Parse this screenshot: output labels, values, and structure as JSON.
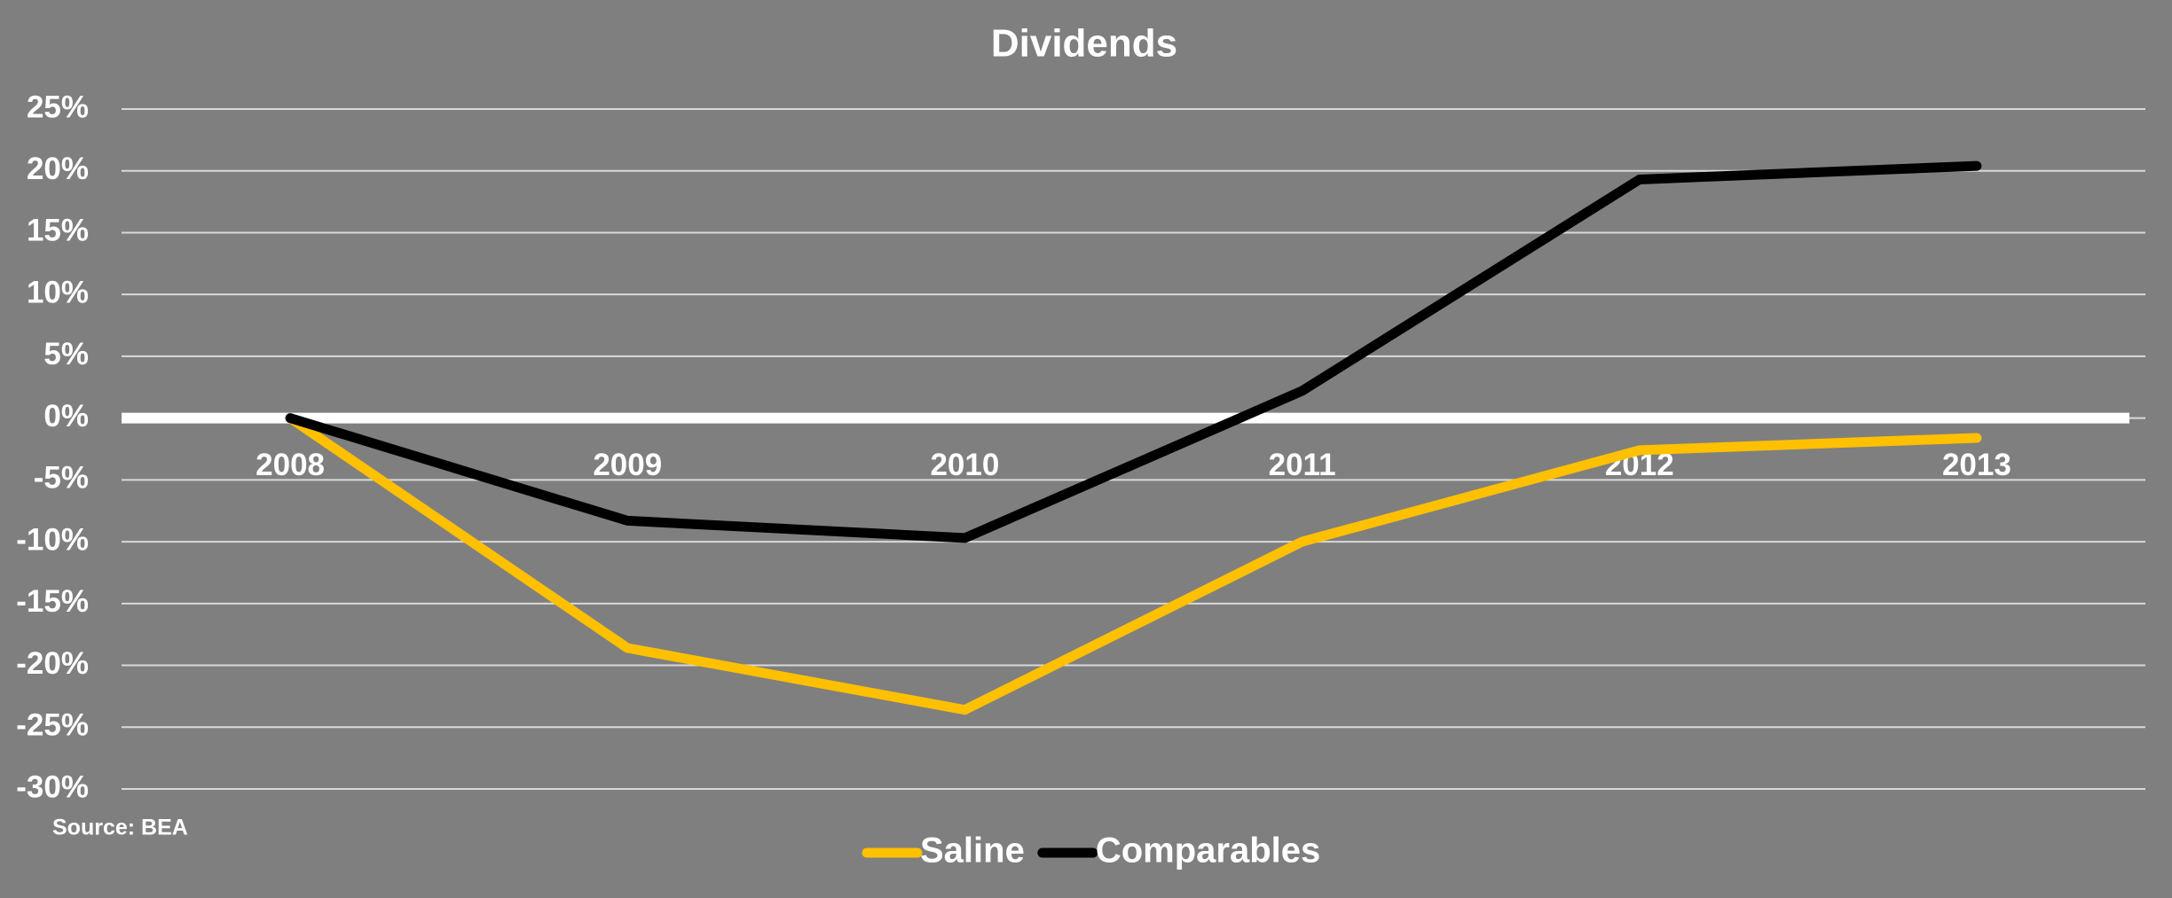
{
  "chart_data": {
    "type": "line",
    "title": "Dividends",
    "source": "Source: BEA",
    "categories": [
      "2008",
      "2009",
      "2010",
      "2011",
      "2012",
      "2013"
    ],
    "series": [
      {
        "name": "Saline",
        "color": "#ffc000",
        "values": [
          0,
          -18.6,
          -23.6,
          -10.0,
          -2.6,
          -1.6
        ]
      },
      {
        "name": "Comparables",
        "color": "#000000",
        "values": [
          0,
          -8.3,
          -9.7,
          2.2,
          19.3,
          20.4
        ]
      }
    ],
    "ylim": [
      -30,
      25
    ],
    "yticks": [
      {
        "value": -30,
        "label": "-30%"
      },
      {
        "value": -25,
        "label": "-25%"
      },
      {
        "value": -20,
        "label": "-20%"
      },
      {
        "value": -15,
        "label": "-15%"
      },
      {
        "value": -10,
        "label": "-10%"
      },
      {
        "value": -5,
        "label": "-5%"
      },
      {
        "value": 0,
        "label": "0%"
      },
      {
        "value": 5,
        "label": "5%"
      },
      {
        "value": 10,
        "label": "10%"
      },
      {
        "value": 15,
        "label": "15%"
      },
      {
        "value": 20,
        "label": "20%"
      },
      {
        "value": 25,
        "label": "25%"
      }
    ],
    "grid": true,
    "legend": "bottom"
  }
}
